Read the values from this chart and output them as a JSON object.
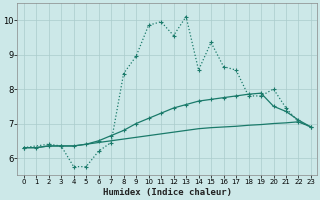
{
  "xlabel": "Humidex (Indice chaleur)",
  "background_color": "#cce8e8",
  "grid_color": "#aacccc",
  "line_color": "#1a7a6a",
  "xlim": [
    -0.5,
    23.5
  ],
  "ylim": [
    5.5,
    10.5
  ],
  "yticks": [
    6,
    7,
    8,
    9,
    10
  ],
  "xticks": [
    0,
    1,
    2,
    3,
    4,
    5,
    6,
    7,
    8,
    9,
    10,
    11,
    12,
    13,
    14,
    15,
    16,
    17,
    18,
    19,
    20,
    21,
    22,
    23
  ],
  "line1_x": [
    0,
    1,
    2,
    3,
    4,
    5,
    6,
    7,
    8,
    9,
    10,
    11,
    12,
    13,
    14,
    15,
    16,
    17,
    18,
    19,
    20,
    21,
    22,
    23
  ],
  "line1_y": [
    6.3,
    6.3,
    6.35,
    6.35,
    6.35,
    6.4,
    6.45,
    6.5,
    6.55,
    6.6,
    6.65,
    6.7,
    6.75,
    6.8,
    6.85,
    6.88,
    6.9,
    6.92,
    6.95,
    6.97,
    7.0,
    7.02,
    7.05,
    6.9
  ],
  "line2_x": [
    0,
    1,
    2,
    3,
    4,
    5,
    6,
    7,
    8,
    9,
    10,
    11,
    12,
    13,
    14,
    15,
    16,
    17,
    18,
    19,
    20,
    21,
    22,
    23
  ],
  "line2_y": [
    6.3,
    6.3,
    6.35,
    6.35,
    6.35,
    6.4,
    6.5,
    6.65,
    6.8,
    7.0,
    7.15,
    7.3,
    7.45,
    7.55,
    7.65,
    7.7,
    7.75,
    7.8,
    7.85,
    7.88,
    7.5,
    7.35,
    7.1,
    6.9
  ],
  "line3_x": [
    0,
    2,
    3,
    4,
    5,
    6,
    7,
    8,
    9,
    10,
    11,
    12,
    13,
    14,
    15,
    16,
    17,
    18,
    19,
    20,
    21,
    22,
    23
  ],
  "line3_y": [
    6.3,
    6.4,
    6.35,
    5.75,
    5.75,
    6.2,
    6.45,
    8.45,
    8.95,
    9.85,
    9.95,
    9.55,
    10.1,
    8.55,
    9.35,
    8.65,
    8.55,
    7.8,
    7.8,
    8.0,
    7.45,
    7.05,
    6.9
  ]
}
